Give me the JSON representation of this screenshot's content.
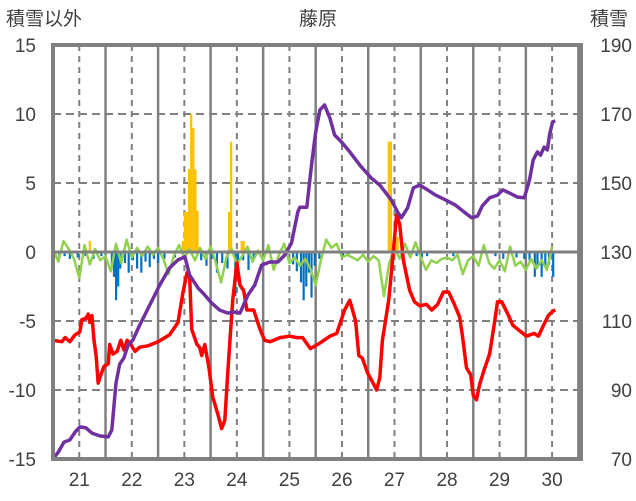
{
  "chart_data": {
    "type": "bar+line",
    "title": "藤原",
    "ylabel_left": "積雪以外",
    "ylabel_right": "積雪",
    "xlim": [
      21.0,
      31.05
    ],
    "ylim_left": [
      -15,
      15
    ],
    "ylim_right": [
      70,
      190
    ],
    "xticks": [
      {
        "value": 21.5,
        "label": "21"
      },
      {
        "value": 22.5,
        "label": "22"
      },
      {
        "value": 23.5,
        "label": "23"
      },
      {
        "value": 24.5,
        "label": "24"
      },
      {
        "value": 25.5,
        "label": "25"
      },
      {
        "value": 26.5,
        "label": "26"
      },
      {
        "value": 27.5,
        "label": "27"
      },
      {
        "value": 28.5,
        "label": "28"
      },
      {
        "value": 29.5,
        "label": "29"
      },
      {
        "value": 30.5,
        "label": "30"
      }
    ],
    "yticks_left": [
      "15",
      "10",
      "5",
      "0",
      "-5",
      "-10",
      "-15"
    ],
    "yticks_left_values": [
      15,
      10,
      5,
      0,
      -5,
      -10,
      -15
    ],
    "yticks_right": [
      "190",
      "170",
      "150",
      "130",
      "110",
      "90",
      "70"
    ],
    "yticks_right_values": [
      190,
      170,
      150,
      130,
      110,
      90,
      70
    ],
    "grid": true,
    "bar_width_days": 0.0417,
    "colors": {
      "red": "#ff0000",
      "purple": "#7030a0",
      "green": "#92d050",
      "orange": "#ffc000",
      "blue": "#0070c0",
      "axis": "#808080"
    },
    "orange_bars": [
      [
        21.68,
        0.8
      ],
      [
        23.45,
        0.8
      ],
      [
        23.49,
        2.9
      ],
      [
        23.53,
        2.9
      ],
      [
        23.57,
        6
      ],
      [
        23.61,
        10
      ],
      [
        23.65,
        9
      ],
      [
        23.69,
        6
      ],
      [
        23.73,
        3
      ],
      [
        24.33,
        2.9
      ],
      [
        24.37,
        8
      ],
      [
        24.57,
        0.8
      ],
      [
        24.61,
        0.8
      ],
      [
        27.37,
        8
      ],
      [
        27.41,
        8
      ],
      [
        27.5,
        1.1
      ],
      [
        27.54,
        1.1
      ]
    ],
    "blue_bars": [
      [
        21.02,
        -0.4
      ],
      [
        21.1,
        -0.5
      ],
      [
        21.2,
        -0.3
      ],
      [
        21.3,
        -0.5
      ],
      [
        21.45,
        -0.4
      ],
      [
        21.6,
        -0.3
      ],
      [
        21.75,
        -0.5
      ],
      [
        21.9,
        -0.3
      ],
      [
        22.1,
        -1.0
      ],
      [
        22.14,
        -1.8
      ],
      [
        22.18,
        -3.5
      ],
      [
        22.22,
        -2.5
      ],
      [
        22.26,
        -1.2
      ],
      [
        22.35,
        -0.8
      ],
      [
        22.42,
        -1.5
      ],
      [
        22.5,
        -0.6
      ],
      [
        22.58,
        -1.2
      ],
      [
        22.66,
        -1.5
      ],
      [
        22.74,
        -0.7
      ],
      [
        22.82,
        -1.1
      ],
      [
        22.9,
        -0.5
      ],
      [
        22.98,
        -0.8
      ],
      [
        23.1,
        -0.5
      ],
      [
        23.3,
        -0.4
      ],
      [
        23.8,
        -0.6
      ],
      [
        23.9,
        -1.0
      ],
      [
        24.0,
        -0.5
      ],
      [
        24.1,
        -1.5
      ],
      [
        24.2,
        -0.8
      ],
      [
        24.3,
        -1.2
      ],
      [
        24.45,
        -3.2
      ],
      [
        24.5,
        -1.0
      ],
      [
        24.6,
        -0.6
      ],
      [
        24.7,
        -1.3
      ],
      [
        24.8,
        -0.5
      ],
      [
        25.55,
        -0.9
      ],
      [
        25.62,
        -1.4
      ],
      [
        25.7,
        -2.2
      ],
      [
        25.75,
        -3.5
      ],
      [
        25.8,
        -2.5
      ],
      [
        25.85,
        -1.5
      ],
      [
        25.9,
        -3.3
      ],
      [
        25.96,
        -1.0
      ],
      [
        26.05,
        -0.5
      ],
      [
        26.5,
        -0.3
      ],
      [
        26.6,
        -0.3
      ],
      [
        27.45,
        -0.2
      ],
      [
        27.9,
        -0.3
      ],
      [
        28.0,
        -0.4
      ],
      [
        28.1,
        -0.3
      ],
      [
        28.6,
        -0.3
      ],
      [
        29.4,
        -0.3
      ],
      [
        29.55,
        -0.5
      ],
      [
        29.8,
        -0.4
      ],
      [
        29.95,
        -0.5
      ],
      [
        30.05,
        -0.6
      ],
      [
        30.15,
        -1.8
      ],
      [
        30.2,
        -1.2
      ],
      [
        30.28,
        -1.8
      ],
      [
        30.35,
        -1.0
      ],
      [
        30.42,
        -0.9
      ],
      [
        30.5,
        -1.8
      ]
    ],
    "red_series": [
      [
        21.0,
        -6.4
      ],
      [
        21.17,
        -6.5
      ],
      [
        21.23,
        -6.2
      ],
      [
        21.32,
        -6.5
      ],
      [
        21.42,
        -6.0
      ],
      [
        21.51,
        -5.8
      ],
      [
        21.55,
        -4.9
      ],
      [
        21.63,
        -4.8
      ],
      [
        21.67,
        -4.5
      ],
      [
        21.7,
        -5.1
      ],
      [
        21.74,
        -4.6
      ],
      [
        21.78,
        -6.4
      ],
      [
        21.82,
        -7.5
      ],
      [
        21.86,
        -9.5
      ],
      [
        21.89,
        -9.1
      ],
      [
        21.97,
        -8.3
      ],
      [
        22.05,
        -8.1
      ],
      [
        22.08,
        -6.7
      ],
      [
        22.14,
        -7.4
      ],
      [
        22.22,
        -7.2
      ],
      [
        22.29,
        -6.4
      ],
      [
        22.35,
        -7.1
      ],
      [
        22.41,
        -6.4
      ],
      [
        22.48,
        -6.7
      ],
      [
        22.56,
        -7.2
      ],
      [
        22.65,
        -6.9
      ],
      [
        22.81,
        -6.8
      ],
      [
        23.0,
        -6.5
      ],
      [
        23.22,
        -6.0
      ],
      [
        23.38,
        -5.1
      ],
      [
        23.47,
        -3.0
      ],
      [
        23.55,
        -1.5
      ],
      [
        23.6,
        -1.7
      ],
      [
        23.64,
        -5.6
      ],
      [
        23.74,
        -6.7
      ],
      [
        23.79,
        -6.9
      ],
      [
        23.83,
        -7.5
      ],
      [
        23.89,
        -6.7
      ],
      [
        23.97,
        -8.4
      ],
      [
        24.04,
        -10.5
      ],
      [
        24.14,
        -11.8
      ],
      [
        24.21,
        -12.8
      ],
      [
        24.27,
        -12.2
      ],
      [
        24.33,
        -8.6
      ],
      [
        24.42,
        -3.5
      ],
      [
        24.5,
        -0.8
      ],
      [
        24.56,
        -2.4
      ],
      [
        24.63,
        -2.8
      ],
      [
        24.69,
        -4.2
      ],
      [
        24.82,
        -4.2
      ],
      [
        24.94,
        -5.6
      ],
      [
        25.03,
        -6.4
      ],
      [
        25.13,
        -6.5
      ],
      [
        25.32,
        -6.2
      ],
      [
        25.51,
        -6.1
      ],
      [
        25.64,
        -6.2
      ],
      [
        25.75,
        -6.2
      ],
      [
        25.9,
        -7.0
      ],
      [
        26.08,
        -6.6
      ],
      [
        26.27,
        -6.1
      ],
      [
        26.4,
        -5.9
      ],
      [
        26.55,
        -4.2
      ],
      [
        26.65,
        -3.5
      ],
      [
        26.76,
        -5.0
      ],
      [
        26.82,
        -7.5
      ],
      [
        26.89,
        -7.7
      ],
      [
        26.99,
        -8.8
      ],
      [
        27.08,
        -9.4
      ],
      [
        27.16,
        -10.0
      ],
      [
        27.22,
        -9.1
      ],
      [
        27.27,
        -6.4
      ],
      [
        27.39,
        -3.5
      ],
      [
        27.46,
        -0.7
      ],
      [
        27.54,
        2.7
      ],
      [
        27.6,
        2.0
      ],
      [
        27.67,
        -0.6
      ],
      [
        27.79,
        -2.8
      ],
      [
        27.88,
        -3.6
      ],
      [
        27.98,
        -3.9
      ],
      [
        28.11,
        -3.8
      ],
      [
        28.21,
        -4.2
      ],
      [
        28.32,
        -3.8
      ],
      [
        28.43,
        -2.9
      ],
      [
        28.53,
        -2.9
      ],
      [
        28.64,
        -3.8
      ],
      [
        28.74,
        -4.7
      ],
      [
        28.79,
        -6.0
      ],
      [
        28.87,
        -8.4
      ],
      [
        28.95,
        -8.9
      ],
      [
        29.0,
        -10.4
      ],
      [
        29.06,
        -10.7
      ],
      [
        29.12,
        -9.6
      ],
      [
        29.21,
        -8.5
      ],
      [
        29.31,
        -7.4
      ],
      [
        29.4,
        -5.2
      ],
      [
        29.46,
        -3.6
      ],
      [
        29.54,
        -3.6
      ],
      [
        29.67,
        -4.6
      ],
      [
        29.75,
        -5.3
      ],
      [
        29.88,
        -5.7
      ],
      [
        30.01,
        -6.1
      ],
      [
        30.16,
        -5.9
      ],
      [
        30.24,
        -6.1
      ],
      [
        30.35,
        -5.2
      ],
      [
        30.43,
        -4.6
      ],
      [
        30.51,
        -4.3
      ],
      [
        30.56,
        -4.2
      ]
    ],
    "purple_series_right_axis": [
      [
        21.0,
        70.0
      ],
      [
        21.1,
        72.0
      ],
      [
        21.21,
        74.9
      ],
      [
        21.32,
        75.5
      ],
      [
        21.42,
        77.8
      ],
      [
        21.51,
        79.3
      ],
      [
        21.63,
        79.0
      ],
      [
        21.74,
        77.5
      ],
      [
        21.89,
        76.7
      ],
      [
        22.05,
        76.4
      ],
      [
        22.12,
        78.4
      ],
      [
        22.2,
        92.0
      ],
      [
        22.27,
        97.5
      ],
      [
        22.35,
        99.3
      ],
      [
        22.43,
        103.0
      ],
      [
        22.52,
        104.5
      ],
      [
        22.65,
        108.8
      ],
      [
        22.84,
        114.6
      ],
      [
        23.03,
        120.4
      ],
      [
        23.22,
        125.4
      ],
      [
        23.38,
        127.7
      ],
      [
        23.51,
        128.6
      ],
      [
        23.6,
        123.3
      ],
      [
        23.76,
        119.6
      ],
      [
        23.89,
        117.5
      ],
      [
        24.02,
        115.2
      ],
      [
        24.17,
        113.2
      ],
      [
        24.33,
        112.3
      ],
      [
        24.44,
        112.6
      ],
      [
        24.56,
        112.3
      ],
      [
        24.71,
        117.5
      ],
      [
        24.84,
        120.4
      ],
      [
        24.97,
        126.2
      ],
      [
        25.13,
        127.1
      ],
      [
        25.28,
        127.1
      ],
      [
        25.41,
        129.1
      ],
      [
        25.54,
        132.6
      ],
      [
        25.66,
        141.6
      ],
      [
        25.7,
        143.0
      ],
      [
        25.83,
        143.0
      ],
      [
        25.92,
        155.2
      ],
      [
        26.0,
        164.8
      ],
      [
        26.08,
        171.2
      ],
      [
        26.17,
        172.6
      ],
      [
        26.27,
        168.8
      ],
      [
        26.36,
        163.9
      ],
      [
        26.49,
        161.9
      ],
      [
        26.65,
        159.0
      ],
      [
        26.84,
        155.2
      ],
      [
        27.06,
        151.4
      ],
      [
        27.22,
        149.4
      ],
      [
        27.44,
        145.1
      ],
      [
        27.56,
        141.6
      ],
      [
        27.63,
        139.9
      ],
      [
        27.75,
        142.8
      ],
      [
        27.86,
        148.6
      ],
      [
        27.98,
        149.4
      ],
      [
        28.13,
        148.0
      ],
      [
        28.28,
        146.5
      ],
      [
        28.47,
        145.1
      ],
      [
        28.66,
        143.6
      ],
      [
        28.85,
        141.3
      ],
      [
        28.97,
        139.9
      ],
      [
        29.08,
        140.4
      ],
      [
        29.17,
        143.3
      ],
      [
        29.31,
        145.7
      ],
      [
        29.46,
        146.5
      ],
      [
        29.56,
        148.0
      ],
      [
        29.69,
        147.1
      ],
      [
        29.84,
        145.9
      ],
      [
        29.97,
        145.7
      ],
      [
        30.07,
        150.9
      ],
      [
        30.14,
        156.7
      ],
      [
        30.22,
        159.0
      ],
      [
        30.28,
        158.1
      ],
      [
        30.35,
        160.4
      ],
      [
        30.41,
        159.6
      ],
      [
        30.45,
        163.9
      ],
      [
        30.51,
        167.7
      ],
      [
        30.56,
        168.0
      ]
    ],
    "green_series": {
      "start": 21.0,
      "step": 0.1,
      "values": [
        0.3,
        -0.7,
        0.8,
        0.2,
        -0.5,
        -1.9,
        0.5,
        -0.9,
        0.2,
        -0.6,
        -0.3,
        -1.4,
        0.6,
        -0.8,
        0.9,
        -0.4,
        0.3,
        -0.3,
        0.4,
        -0.2,
        0.3,
        -0.5,
        -1.6,
        -0.3,
        0.5,
        -0.4,
        0.2,
        -0.6,
        0.3,
        -0.5,
        0.4,
        -0.8,
        -2.2,
        -0.4,
        0.2,
        -0.9,
        -0.3,
        0.4,
        -0.7,
        0.1,
        -0.6,
        0.5,
        -1.3,
        -0.2,
        0.6,
        -0.8,
        -0.4,
        -1.0,
        -0.5,
        -1.2,
        -2.4,
        -0.6,
        0.9,
        0.3,
        0.6,
        -0.4,
        -0.2,
        -0.4,
        -0.6,
        -0.2,
        -0.7,
        -0.3,
        -0.6,
        -3.2,
        -0.8,
        0.3,
        -0.5,
        0.6,
        -0.4,
        0.7,
        -0.4,
        -1.3,
        -0.6,
        -0.8,
        -0.5,
        -0.4,
        -0.6,
        -0.2,
        -1.6,
        -0.6,
        -0.3,
        -1.0,
        0.5,
        -0.8,
        -1.2,
        -0.6,
        -1.4,
        0.4,
        -1.0,
        -0.7,
        -1.3,
        -0.5,
        -1.2,
        -0.6,
        -1.3,
        0.4
      ]
    }
  }
}
